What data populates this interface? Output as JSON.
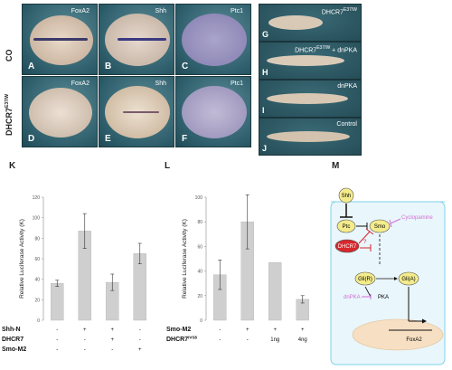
{
  "figure": {
    "row_labels": [
      "CO",
      "DHCR7"
    ],
    "row_label_sup": "E37/W",
    "embryo_panels": [
      {
        "letter": "A",
        "gene": "FoxA2"
      },
      {
        "letter": "B",
        "gene": "Shh"
      },
      {
        "letter": "C",
        "gene": "Ptc1"
      },
      {
        "letter": "D",
        "gene": "FoxA2"
      },
      {
        "letter": "E",
        "gene": "Shh"
      },
      {
        "letter": "F",
        "gene": "Ptc1"
      }
    ],
    "tadpole_panels": [
      {
        "letter": "G",
        "name": "DHCR7",
        "sup": "E37/W"
      },
      {
        "letter": "H",
        "name": "DHCR7",
        "sup": "E37/W",
        "suffix": "+ dnPKA"
      },
      {
        "letter": "I",
        "name": "dnPKA",
        "sup": "",
        "suffix": ""
      },
      {
        "letter": "J",
        "name": "Control",
        "sup": "",
        "suffix": ""
      }
    ],
    "panel_letters": {
      "K": "K",
      "L": "L",
      "M": "M"
    }
  },
  "chart_data": [
    {
      "type": "bar",
      "panel": "K",
      "ylabel": "Relative Luciferase Activity (K)",
      "yticks": [
        "0",
        "20",
        "40",
        "60",
        "80",
        "100",
        "120"
      ],
      "ylim": [
        0,
        120
      ],
      "values": [
        36,
        87,
        37,
        65
      ],
      "errors": [
        3,
        17,
        8,
        10
      ],
      "row_names": [
        "Shh-N",
        "DHCR7",
        "Smo-M2"
      ],
      "row_signs": [
        [
          "-",
          "+",
          "+",
          "-"
        ],
        [
          "-",
          "-",
          "+",
          "-"
        ],
        [
          "-",
          "-",
          "-",
          "+"
        ]
      ]
    },
    {
      "type": "bar",
      "panel": "L",
      "ylabel": "Relative Luciferase Activity (K)",
      "yticks": [
        "0",
        "20",
        "40",
        "60",
        "80",
        "100"
      ],
      "ylim": [
        0,
        100
      ],
      "values": [
        37,
        80,
        47,
        17
      ],
      "errors": [
        12,
        22,
        0,
        3
      ],
      "row_names": [
        "Smo-M2",
        "DHCR7"
      ],
      "row_sup": "IVS8",
      "row_signs": [
        [
          "-",
          "+",
          "+",
          "+"
        ],
        [
          "-",
          "-",
          "1ng",
          "4ng"
        ]
      ]
    }
  ],
  "diagram": {
    "nodes": {
      "shh": "Shh",
      "ptc": "Ptc",
      "smo": "Smo",
      "dhcr7": "DHCR7",
      "glir": "Gli(R)",
      "glia": "Gli(A)",
      "pka": "PKA",
      "dnpka": "dnPKA",
      "foxa2": "FoxA2",
      "cyclopamine": "Cyclopamine",
      "question": "?"
    }
  }
}
